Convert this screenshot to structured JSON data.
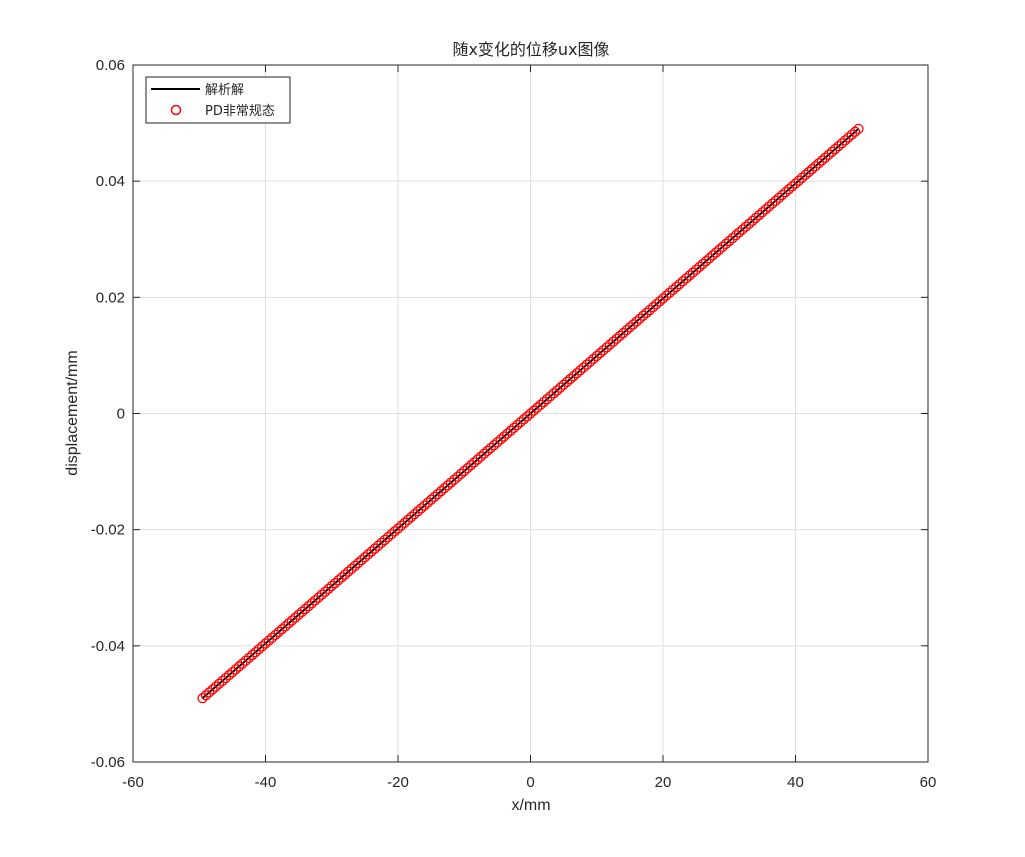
{
  "chart_data": {
    "type": "line",
    "title": "随x变化的位移ux图像",
    "xlabel": "x/mm",
    "ylabel": "displacement/mm",
    "xlim": [
      -60,
      60
    ],
    "ylim": [
      -0.06,
      0.06
    ],
    "x_ticks": [
      "-60",
      "-40",
      "-20",
      "0",
      "20",
      "40",
      "60"
    ],
    "y_ticks": [
      "0.06",
      "0.04",
      "0.02",
      "0",
      "-0.02",
      "-0.04",
      "-0.06"
    ],
    "grid": true,
    "legend_position": "top-left",
    "series": [
      {
        "name": "解析解",
        "type": "line",
        "color": "#000000",
        "x": [
          -49.5,
          49.5
        ],
        "y": [
          -0.049,
          0.049
        ]
      },
      {
        "name": "PD非常规态",
        "type": "scatter",
        "marker": "circle-open",
        "color": "#ff0000",
        "x_start": -49.5,
        "x_step": 0.5,
        "count": 199,
        "slope": 0.00099
      }
    ]
  }
}
